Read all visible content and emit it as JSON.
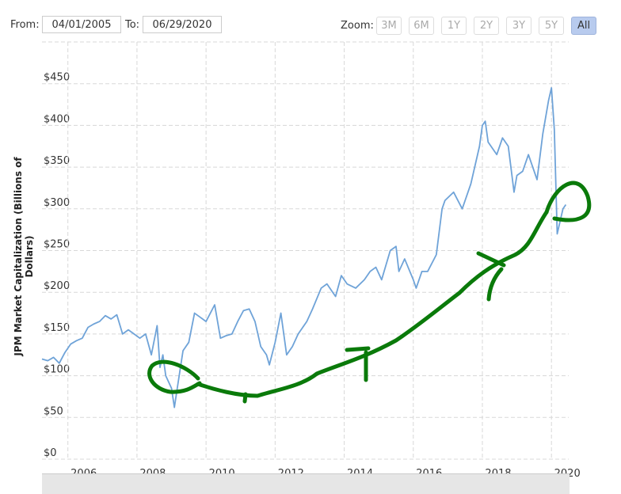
{
  "range": {
    "from_label": "From:",
    "from_value": "04/01/2005",
    "to_label": "To:",
    "to_value": "06/29/2020"
  },
  "zoom": {
    "label": "Zoom:",
    "buttons": [
      "3M",
      "6M",
      "1Y",
      "2Y",
      "3Y",
      "5Y",
      "All"
    ],
    "active": "All"
  },
  "colors": {
    "series": "#6fa3d8",
    "annotation": "#0a7a0a",
    "grid": "#d8d8d8",
    "active_button": "#b8cbee"
  },
  "chart_data": {
    "type": "line",
    "ylabel": "JPM Market Capitalization (Billions of Dollars)",
    "xlabel": "",
    "xlim": [
      "2005-04",
      "2020-06"
    ],
    "ylim": [
      0,
      500
    ],
    "grid": true,
    "x_ticks": [
      "2006",
      "2008",
      "2010",
      "2012",
      "2014",
      "2016",
      "2018",
      "2020"
    ],
    "y_ticks": [
      "$0",
      "$50",
      "$100",
      "$150",
      "$200",
      "$250",
      "$300",
      "$350",
      "$400",
      "$450"
    ],
    "series": [
      {
        "points": [
          [
            "2005-04",
            120
          ],
          [
            "2005-06",
            118
          ],
          [
            "2005-08",
            122
          ],
          [
            "2005-10",
            115
          ],
          [
            "2005-12",
            128
          ],
          [
            "2006-02",
            138
          ],
          [
            "2006-04",
            142
          ],
          [
            "2006-06",
            145
          ],
          [
            "2006-08",
            158
          ],
          [
            "2006-10",
            162
          ],
          [
            "2006-12",
            165
          ],
          [
            "2007-02",
            172
          ],
          [
            "2007-04",
            168
          ],
          [
            "2007-06",
            173
          ],
          [
            "2007-08",
            150
          ],
          [
            "2007-10",
            155
          ],
          [
            "2007-12",
            150
          ],
          [
            "2008-02",
            145
          ],
          [
            "2008-04",
            150
          ],
          [
            "2008-06",
            125
          ],
          [
            "2008-08",
            160
          ],
          [
            "2008-09",
            110
          ],
          [
            "2008-10",
            125
          ],
          [
            "2008-11",
            100
          ],
          [
            "2009-01",
            85
          ],
          [
            "2009-02",
            62
          ],
          [
            "2009-03",
            85
          ],
          [
            "2009-05",
            130
          ],
          [
            "2009-07",
            140
          ],
          [
            "2009-09",
            175
          ],
          [
            "2009-11",
            170
          ],
          [
            "2010-01",
            165
          ],
          [
            "2010-04",
            185
          ],
          [
            "2010-06",
            145
          ],
          [
            "2010-08",
            148
          ],
          [
            "2010-10",
            150
          ],
          [
            "2010-12",
            165
          ],
          [
            "2011-02",
            178
          ],
          [
            "2011-04",
            180
          ],
          [
            "2011-06",
            165
          ],
          [
            "2011-08",
            135
          ],
          [
            "2011-10",
            125
          ],
          [
            "2011-11",
            113
          ],
          [
            "2012-01",
            140
          ],
          [
            "2012-03",
            175
          ],
          [
            "2012-05",
            125
          ],
          [
            "2012-07",
            135
          ],
          [
            "2012-09",
            150
          ],
          [
            "2012-12",
            165
          ],
          [
            "2013-02",
            180
          ],
          [
            "2013-05",
            205
          ],
          [
            "2013-07",
            210
          ],
          [
            "2013-10",
            195
          ],
          [
            "2013-12",
            220
          ],
          [
            "2014-02",
            210
          ],
          [
            "2014-05",
            205
          ],
          [
            "2014-08",
            215
          ],
          [
            "2014-10",
            225
          ],
          [
            "2014-12",
            230
          ],
          [
            "2015-02",
            215
          ],
          [
            "2015-05",
            250
          ],
          [
            "2015-07",
            255
          ],
          [
            "2015-08",
            225
          ],
          [
            "2015-10",
            240
          ],
          [
            "2016-01",
            215
          ],
          [
            "2016-02",
            205
          ],
          [
            "2016-04",
            225
          ],
          [
            "2016-06",
            225
          ],
          [
            "2016-09",
            245
          ],
          [
            "2016-11",
            300
          ],
          [
            "2016-12",
            310
          ],
          [
            "2017-03",
            320
          ],
          [
            "2017-06",
            300
          ],
          [
            "2017-09",
            330
          ],
          [
            "2017-12",
            375
          ],
          [
            "2018-01",
            400
          ],
          [
            "2018-02",
            405
          ],
          [
            "2018-03",
            380
          ],
          [
            "2018-06",
            365
          ],
          [
            "2018-08",
            385
          ],
          [
            "2018-10",
            375
          ],
          [
            "2018-12",
            320
          ],
          [
            "2019-01",
            340
          ],
          [
            "2019-03",
            345
          ],
          [
            "2019-05",
            365
          ],
          [
            "2019-08",
            335
          ],
          [
            "2019-10",
            390
          ],
          [
            "2019-12",
            430
          ],
          [
            "2020-01",
            445
          ],
          [
            "2020-02",
            395
          ],
          [
            "2020-03",
            270
          ],
          [
            "2020-04",
            285
          ],
          [
            "2020-05",
            300
          ],
          [
            "2020-06",
            305
          ]
        ]
      }
    ]
  }
}
